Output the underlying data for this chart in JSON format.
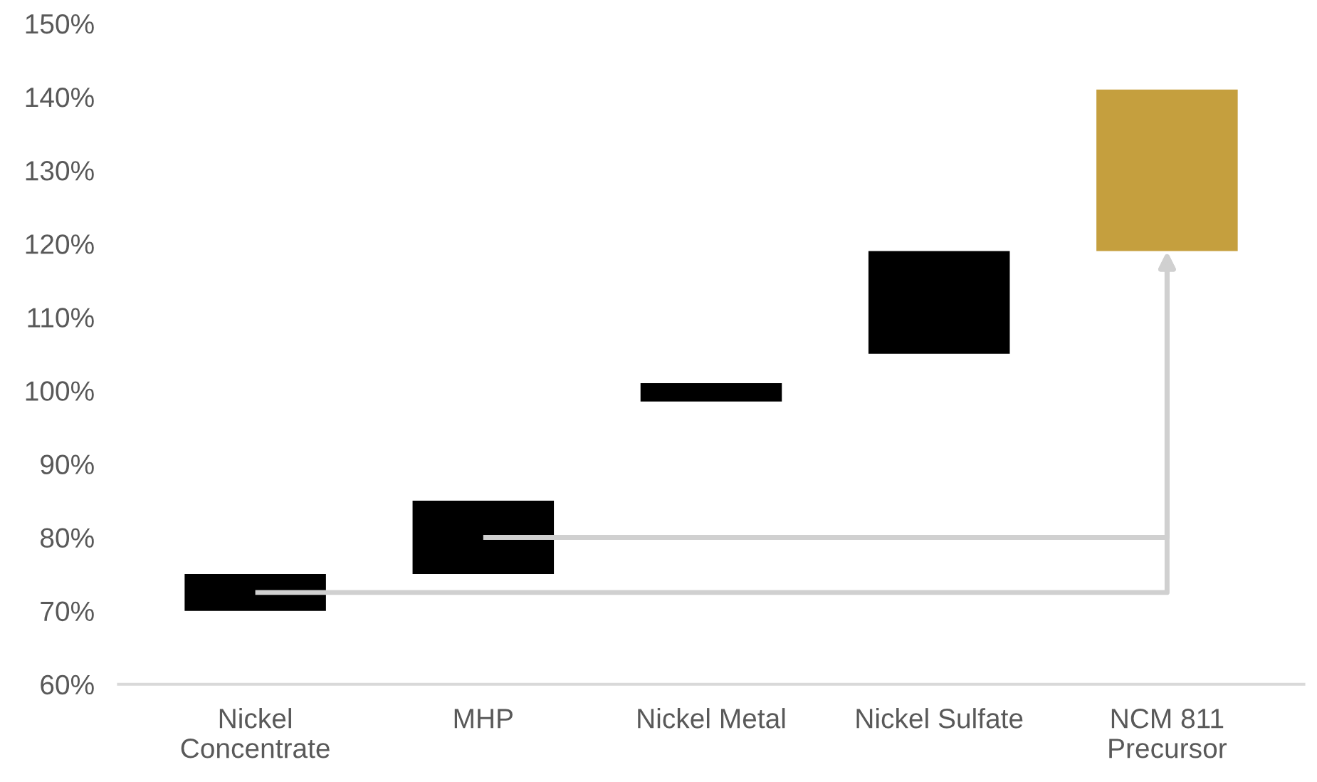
{
  "chart_data": {
    "type": "bar",
    "categories": [
      "Nickel\nConcentrate",
      "MHP",
      "Nickel Metal",
      "Nickel Sulfate",
      "NCM 811\nPrecursor"
    ],
    "base": [
      70,
      75,
      98.5,
      105,
      119
    ],
    "values": [
      5,
      10,
      2.5,
      14,
      22
    ],
    "colors": [
      "#000000",
      "#000000",
      "#000000",
      "#000000",
      "#c59f3e"
    ],
    "ylim": [
      60,
      150
    ],
    "yticks": [
      {
        "value": 60,
        "label": "60%"
      },
      {
        "value": 70,
        "label": "70%"
      },
      {
        "value": 80,
        "label": "80%"
      },
      {
        "value": 90,
        "label": "90%"
      },
      {
        "value": 100,
        "label": "100%"
      },
      {
        "value": 110,
        "label": "110%"
      },
      {
        "value": 120,
        "label": "120%"
      },
      {
        "value": 130,
        "label": "130%"
      },
      {
        "value": 140,
        "label": "140%"
      },
      {
        "value": 150,
        "label": "150%"
      }
    ],
    "grid": false,
    "legend": false
  }
}
